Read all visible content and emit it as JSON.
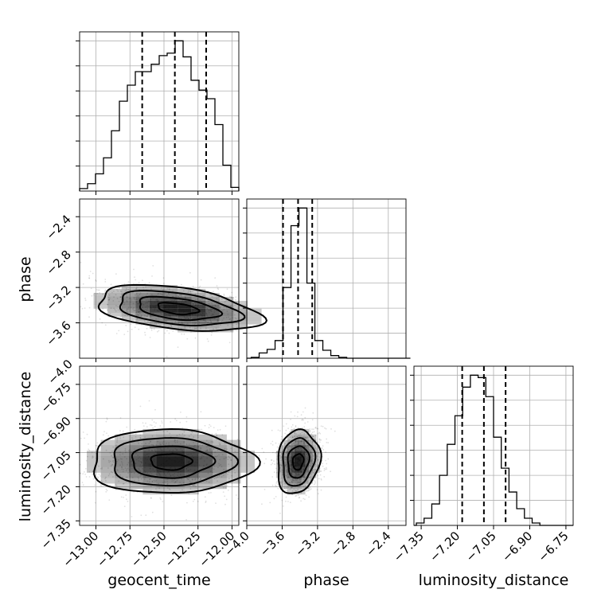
{
  "chart_data": {
    "type": "corner",
    "parameters": [
      "geocent_time",
      "phase",
      "luminosity_distance"
    ],
    "diagonal": [
      {
        "parameter": "geocent_time",
        "type": "histogram",
        "bins_range": [
          -13.12,
          -11.95
        ],
        "counts": [
          2,
          6,
          14,
          27,
          49,
          73,
          86,
          97,
          97,
          103,
          110,
          112,
          122,
          109,
          90,
          82,
          75,
          54,
          21,
          3
        ],
        "quantiles": [
          -12.66,
          -12.42,
          -12.19
        ],
        "xlim": [
          -13.12,
          -11.95
        ],
        "xticks": [
          -13.0,
          -12.75,
          -12.5,
          -12.25,
          -12.0
        ],
        "xticklabels": [
          "−13.00",
          "−12.75",
          "−12.50",
          "−12.25",
          "−12.00"
        ]
      },
      {
        "parameter": "phase",
        "type": "histogram",
        "bins_range": [
          -3.95,
          -2.15
        ],
        "counts": [
          1,
          6,
          10,
          20,
          80,
          150,
          170,
          85,
          20,
          9,
          3,
          1,
          0,
          0,
          0,
          0,
          0,
          0,
          0,
          0
        ],
        "quantiles": [
          -3.59,
          -3.42,
          -3.26
        ],
        "xlim": [
          -4.0,
          -2.2
        ],
        "xticks": [
          -4.0,
          -3.6,
          -3.2,
          -2.8,
          -2.4
        ],
        "xticklabels": [
          "−4.0",
          "−3.6",
          "−3.2",
          "−2.8",
          "−2.4"
        ]
      },
      {
        "parameter": "luminosity_distance",
        "type": "histogram",
        "bins_range": [
          -7.37,
          -6.73
        ],
        "counts": [
          1,
          3,
          9,
          21,
          34,
          46,
          58,
          63,
          62,
          54,
          37,
          24,
          14,
          7,
          3,
          1,
          0,
          0,
          0,
          0
        ],
        "quantiles": [
          -7.18,
          -7.09,
          -7.0
        ],
        "xlim": [
          -7.38,
          -6.72
        ],
        "xticks": [
          -7.35,
          -7.2,
          -7.05,
          -6.9,
          -6.75
        ],
        "xticklabels": [
          "−7.35",
          "−7.20",
          "−7.05",
          "−6.90",
          "−6.75"
        ]
      }
    ],
    "pairs": [
      {
        "x": "geocent_time",
        "y": "phase",
        "type": "density_contour",
        "xlim": [
          -13.12,
          -11.95
        ],
        "ylim": [
          -4.0,
          -2.2
        ],
        "yticks": [
          -3.6,
          -3.2,
          -2.8,
          -2.4
        ],
        "yticklabels": [
          "−3.6",
          "−3.2",
          "−2.8",
          "−2.4"
        ],
        "center": [
          -12.4,
          -3.44
        ],
        "spread": [
          0.3,
          0.13
        ],
        "correlation": -0.4,
        "contour_levels": 4
      },
      {
        "x": "geocent_time",
        "y": "luminosity_distance",
        "type": "density_contour",
        "xlim": [
          -13.12,
          -11.95
        ],
        "ylim": [
          -7.37,
          -6.67
        ],
        "yticks": [
          -7.35,
          -7.2,
          -7.05,
          -6.9,
          -6.75
        ],
        "yticklabels": [
          "−7.35",
          "−7.20",
          "−7.05",
          "−6.90",
          "−6.75"
        ],
        "center": [
          -12.45,
          -7.09
        ],
        "spread": [
          0.3,
          0.07
        ],
        "correlation": 0.0,
        "contour_levels": 4
      },
      {
        "x": "phase",
        "y": "luminosity_distance",
        "type": "density_contour",
        "xlim": [
          -4.0,
          -2.2
        ],
        "ylim": [
          -7.37,
          -6.67
        ],
        "center": [
          -3.42,
          -7.09
        ],
        "spread": [
          0.12,
          0.07
        ],
        "correlation": 0.15,
        "contour_levels": 4
      }
    ],
    "extra_yticks_top_hist": [
      -4.0
    ],
    "extra_yticklabels_top_hist": [
      "−4.0"
    ],
    "grid": true,
    "colors": {
      "line": "#000000",
      "grid": "#b0b0b0",
      "density": "#000000"
    }
  }
}
